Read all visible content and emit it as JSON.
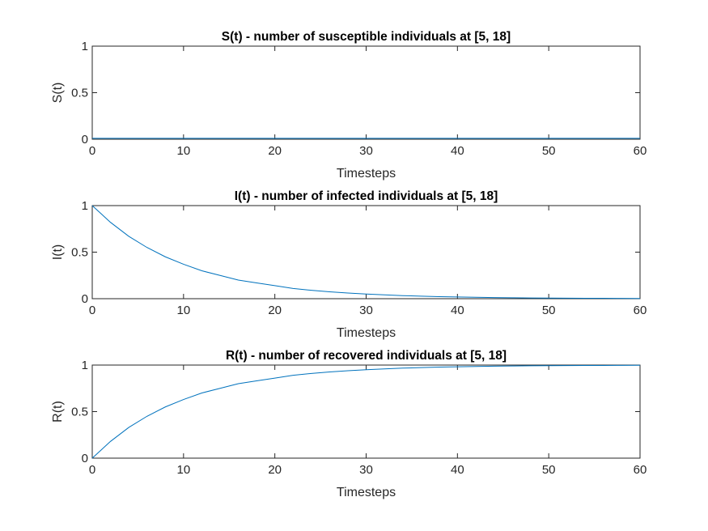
{
  "chart_data": [
    {
      "type": "line",
      "title": "S(t) - number of susceptible individuals at [5, 18]",
      "xlabel": "Timesteps",
      "ylabel": "S(t)",
      "xlim": [
        0,
        60
      ],
      "ylim": [
        0,
        1
      ],
      "xticks": [
        0,
        10,
        20,
        30,
        40,
        50,
        60
      ],
      "xtick_labels": [
        "0",
        "10",
        "20",
        "30",
        "40",
        "50",
        "60"
      ],
      "yticks": [
        0,
        0.5,
        1
      ],
      "ytick_labels": [
        "0",
        "0.5",
        "1"
      ],
      "grid": false,
      "series": [
        {
          "color": "#0072BD",
          "x": [
            0,
            5,
            10,
            15,
            20,
            25,
            30,
            35,
            40,
            45,
            50,
            55,
            60
          ],
          "y": [
            0.01,
            0.01,
            0.01,
            0.01,
            0.01,
            0.01,
            0.01,
            0.01,
            0.01,
            0.01,
            0.01,
            0.01,
            0.01
          ]
        }
      ]
    },
    {
      "type": "line",
      "title": "I(t) - number of infected individuals at [5, 18]",
      "xlabel": "Timesteps",
      "ylabel": "I(t)",
      "xlim": [
        0,
        60
      ],
      "ylim": [
        0,
        1
      ],
      "xticks": [
        0,
        10,
        20,
        30,
        40,
        50,
        60
      ],
      "xtick_labels": [
        "0",
        "10",
        "20",
        "30",
        "40",
        "50",
        "60"
      ],
      "yticks": [
        0,
        0.5,
        1
      ],
      "ytick_labels": [
        "0",
        "0.5",
        "1"
      ],
      "grid": false,
      "series": [
        {
          "color": "#0072BD",
          "x": [
            0,
            2,
            4,
            6,
            8,
            10,
            12,
            14,
            16,
            18,
            20,
            22,
            24,
            26,
            28,
            30,
            32,
            34,
            36,
            38,
            40,
            42,
            44,
            46,
            48,
            50,
            52,
            54,
            56,
            58,
            60
          ],
          "y": [
            1.0,
            0.82,
            0.67,
            0.55,
            0.45,
            0.37,
            0.3,
            0.25,
            0.2,
            0.17,
            0.14,
            0.11,
            0.09,
            0.074,
            0.061,
            0.05,
            0.041,
            0.033,
            0.027,
            0.022,
            0.018,
            0.015,
            0.012,
            0.01,
            0.008,
            0.007,
            0.005,
            0.004,
            0.004,
            0.003,
            0.002
          ]
        }
      ]
    },
    {
      "type": "line",
      "title": "R(t) - number of recovered individuals at [5, 18]",
      "xlabel": "Timesteps",
      "ylabel": "R(t)",
      "xlim": [
        0,
        60
      ],
      "ylim": [
        0,
        1
      ],
      "xticks": [
        0,
        10,
        20,
        30,
        40,
        50,
        60
      ],
      "xtick_labels": [
        "0",
        "10",
        "20",
        "30",
        "40",
        "50",
        "60"
      ],
      "yticks": [
        0,
        0.5,
        1
      ],
      "ytick_labels": [
        "0",
        "0.5",
        "1"
      ],
      "grid": false,
      "series": [
        {
          "color": "#0072BD",
          "x": [
            0,
            2,
            4,
            6,
            8,
            10,
            12,
            14,
            16,
            18,
            20,
            22,
            24,
            26,
            28,
            30,
            32,
            34,
            36,
            38,
            40,
            42,
            44,
            46,
            48,
            50,
            52,
            54,
            56,
            58,
            60
          ],
          "y": [
            0.0,
            0.18,
            0.33,
            0.45,
            0.55,
            0.63,
            0.7,
            0.75,
            0.8,
            0.83,
            0.86,
            0.89,
            0.91,
            0.926,
            0.939,
            0.95,
            0.959,
            0.967,
            0.973,
            0.978,
            0.982,
            0.985,
            0.988,
            0.99,
            0.992,
            0.993,
            0.995,
            0.996,
            0.996,
            0.997,
            0.998
          ]
        }
      ]
    }
  ]
}
